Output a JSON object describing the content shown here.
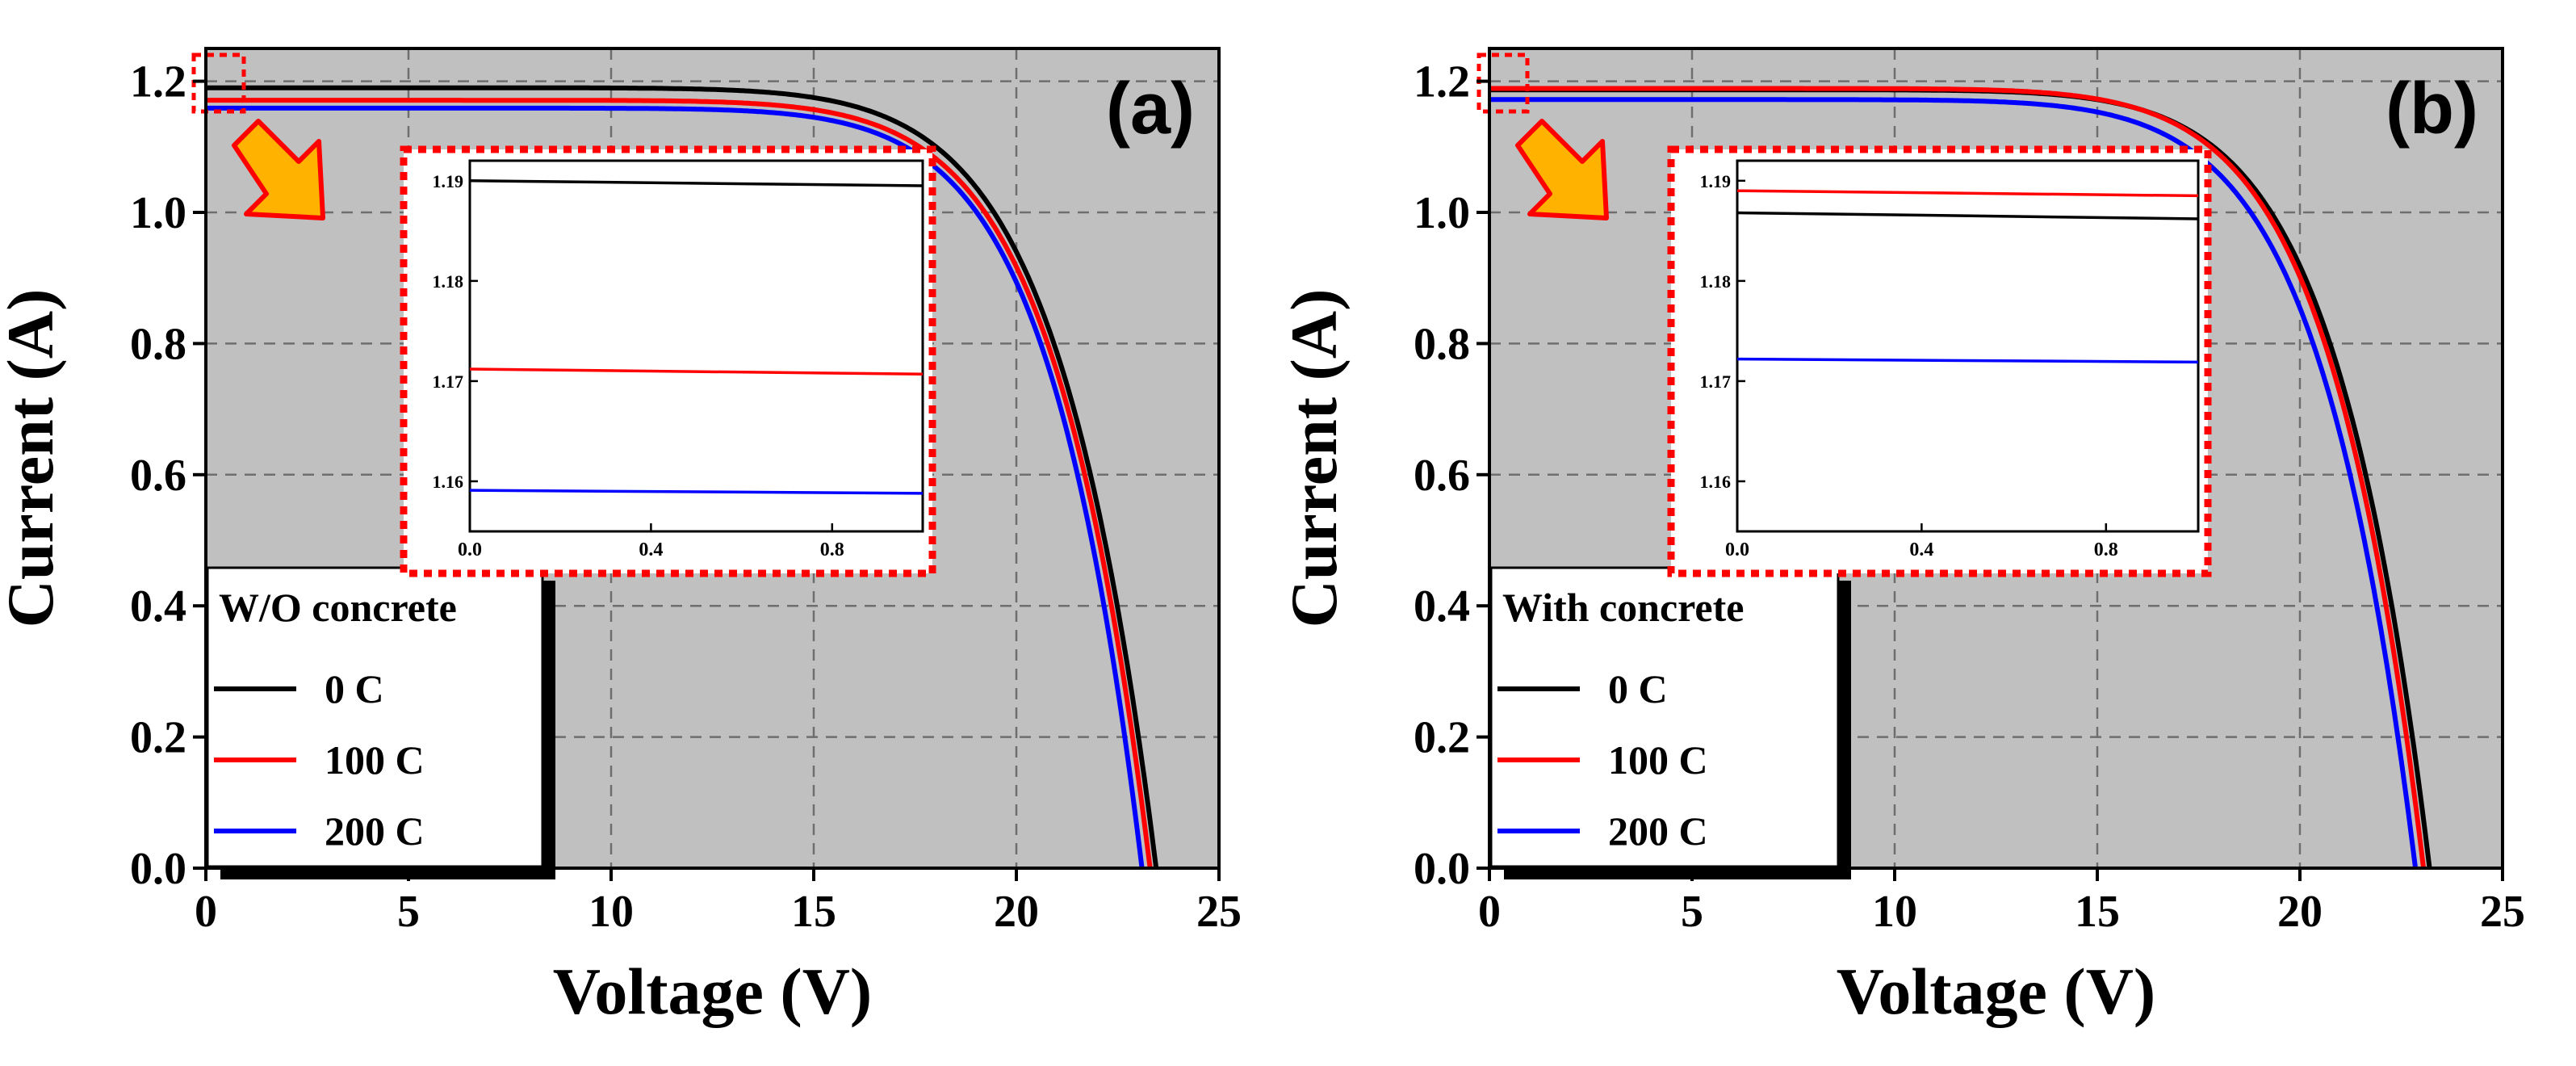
{
  "chart_data": [
    {
      "type": "line",
      "panel_label": "(a)",
      "xlabel": "Voltage (V)",
      "ylabel": "Current (A)",
      "xlim": [
        0,
        25
      ],
      "ylim": [
        0,
        1.25
      ],
      "xticks": [
        0,
        5,
        10,
        15,
        20,
        25
      ],
      "yticks": [
        0.0,
        0.2,
        0.4,
        0.6,
        0.8,
        1.0,
        1.2
      ],
      "ytick_labels": [
        "0.0",
        "0.2",
        "0.4",
        "0.6",
        "0.8",
        "1.0",
        "1.2"
      ],
      "grid": true,
      "legend_title": "W/O concrete",
      "legend_position": "bottom-left",
      "series": [
        {
          "name": "0 C",
          "color": "#000000",
          "isc": 1.19,
          "voc": 23.45,
          "knee": 0.72
        },
        {
          "name": "100 C",
          "color": "#ff0000",
          "isc": 1.171,
          "voc": 23.3,
          "knee": 0.725
        },
        {
          "name": "200 C",
          "color": "#0000ff",
          "isc": 1.159,
          "voc": 23.1,
          "knee": 0.73
        }
      ],
      "inset": {
        "xlim": [
          0,
          1
        ],
        "ylim": [
          1.155,
          1.192
        ],
        "xticks": [
          0.0,
          0.4,
          0.8
        ],
        "xtick_labels": [
          "0.0",
          "0.4",
          "0.8"
        ],
        "yticks": [
          1.16,
          1.17,
          1.18,
          1.19
        ],
        "ytick_labels": [
          "1.16",
          "1.17",
          "1.18",
          "1.19"
        ],
        "lines": [
          {
            "name": "0 C",
            "color": "#000000",
            "y_start": 1.19,
            "y_end": 1.1895
          },
          {
            "name": "100 C",
            "color": "#ff0000",
            "y_start": 1.1712,
            "y_end": 1.1707
          },
          {
            "name": "200 C",
            "color": "#0000ff",
            "y_start": 1.1591,
            "y_end": 1.1588
          }
        ]
      }
    },
    {
      "type": "line",
      "panel_label": "(b)",
      "xlabel": "Voltage (V)",
      "ylabel": "Current (A)",
      "xlim": [
        0,
        25
      ],
      "ylim": [
        0,
        1.25
      ],
      "xticks": [
        0,
        5,
        10,
        15,
        20,
        25
      ],
      "yticks": [
        0.0,
        0.2,
        0.4,
        0.6,
        0.8,
        1.0,
        1.2
      ],
      "ytick_labels": [
        "0.0",
        "0.2",
        "0.4",
        "0.6",
        "0.8",
        "1.0",
        "1.2"
      ],
      "grid": true,
      "legend_title": "With concrete",
      "legend_position": "bottom-left",
      "series": [
        {
          "name": "0 C",
          "color": "#000000",
          "isc": 1.187,
          "voc": 23.2,
          "knee": 0.725
        },
        {
          "name": "100 C",
          "color": "#ff0000",
          "isc": 1.189,
          "voc": 23.05,
          "knee": 0.725
        },
        {
          "name": "200 C",
          "color": "#0000ff",
          "isc": 1.172,
          "voc": 22.85,
          "knee": 0.72
        }
      ],
      "inset": {
        "xlim": [
          0,
          1
        ],
        "ylim": [
          1.155,
          1.192
        ],
        "xticks": [
          0.0,
          0.4,
          0.8
        ],
        "xtick_labels": [
          "0.0",
          "0.4",
          "0.8"
        ],
        "yticks": [
          1.16,
          1.17,
          1.18,
          1.19
        ],
        "ytick_labels": [
          "1.16",
          "1.17",
          "1.18",
          "1.19"
        ],
        "lines": [
          {
            "name": "0 C",
            "color": "#000000",
            "y_start": 1.1868,
            "y_end": 1.1862
          },
          {
            "name": "100 C",
            "color": "#ff0000",
            "y_start": 1.189,
            "y_end": 1.1885
          },
          {
            "name": "200 C",
            "color": "#0000ff",
            "y_start": 1.1722,
            "y_end": 1.1719
          }
        ]
      }
    }
  ],
  "colors": {
    "plot_background": "#c0c0c0",
    "grid": "#6e6e6e",
    "highlight": "#ff0000",
    "arrow_fill": "#ffb300"
  }
}
